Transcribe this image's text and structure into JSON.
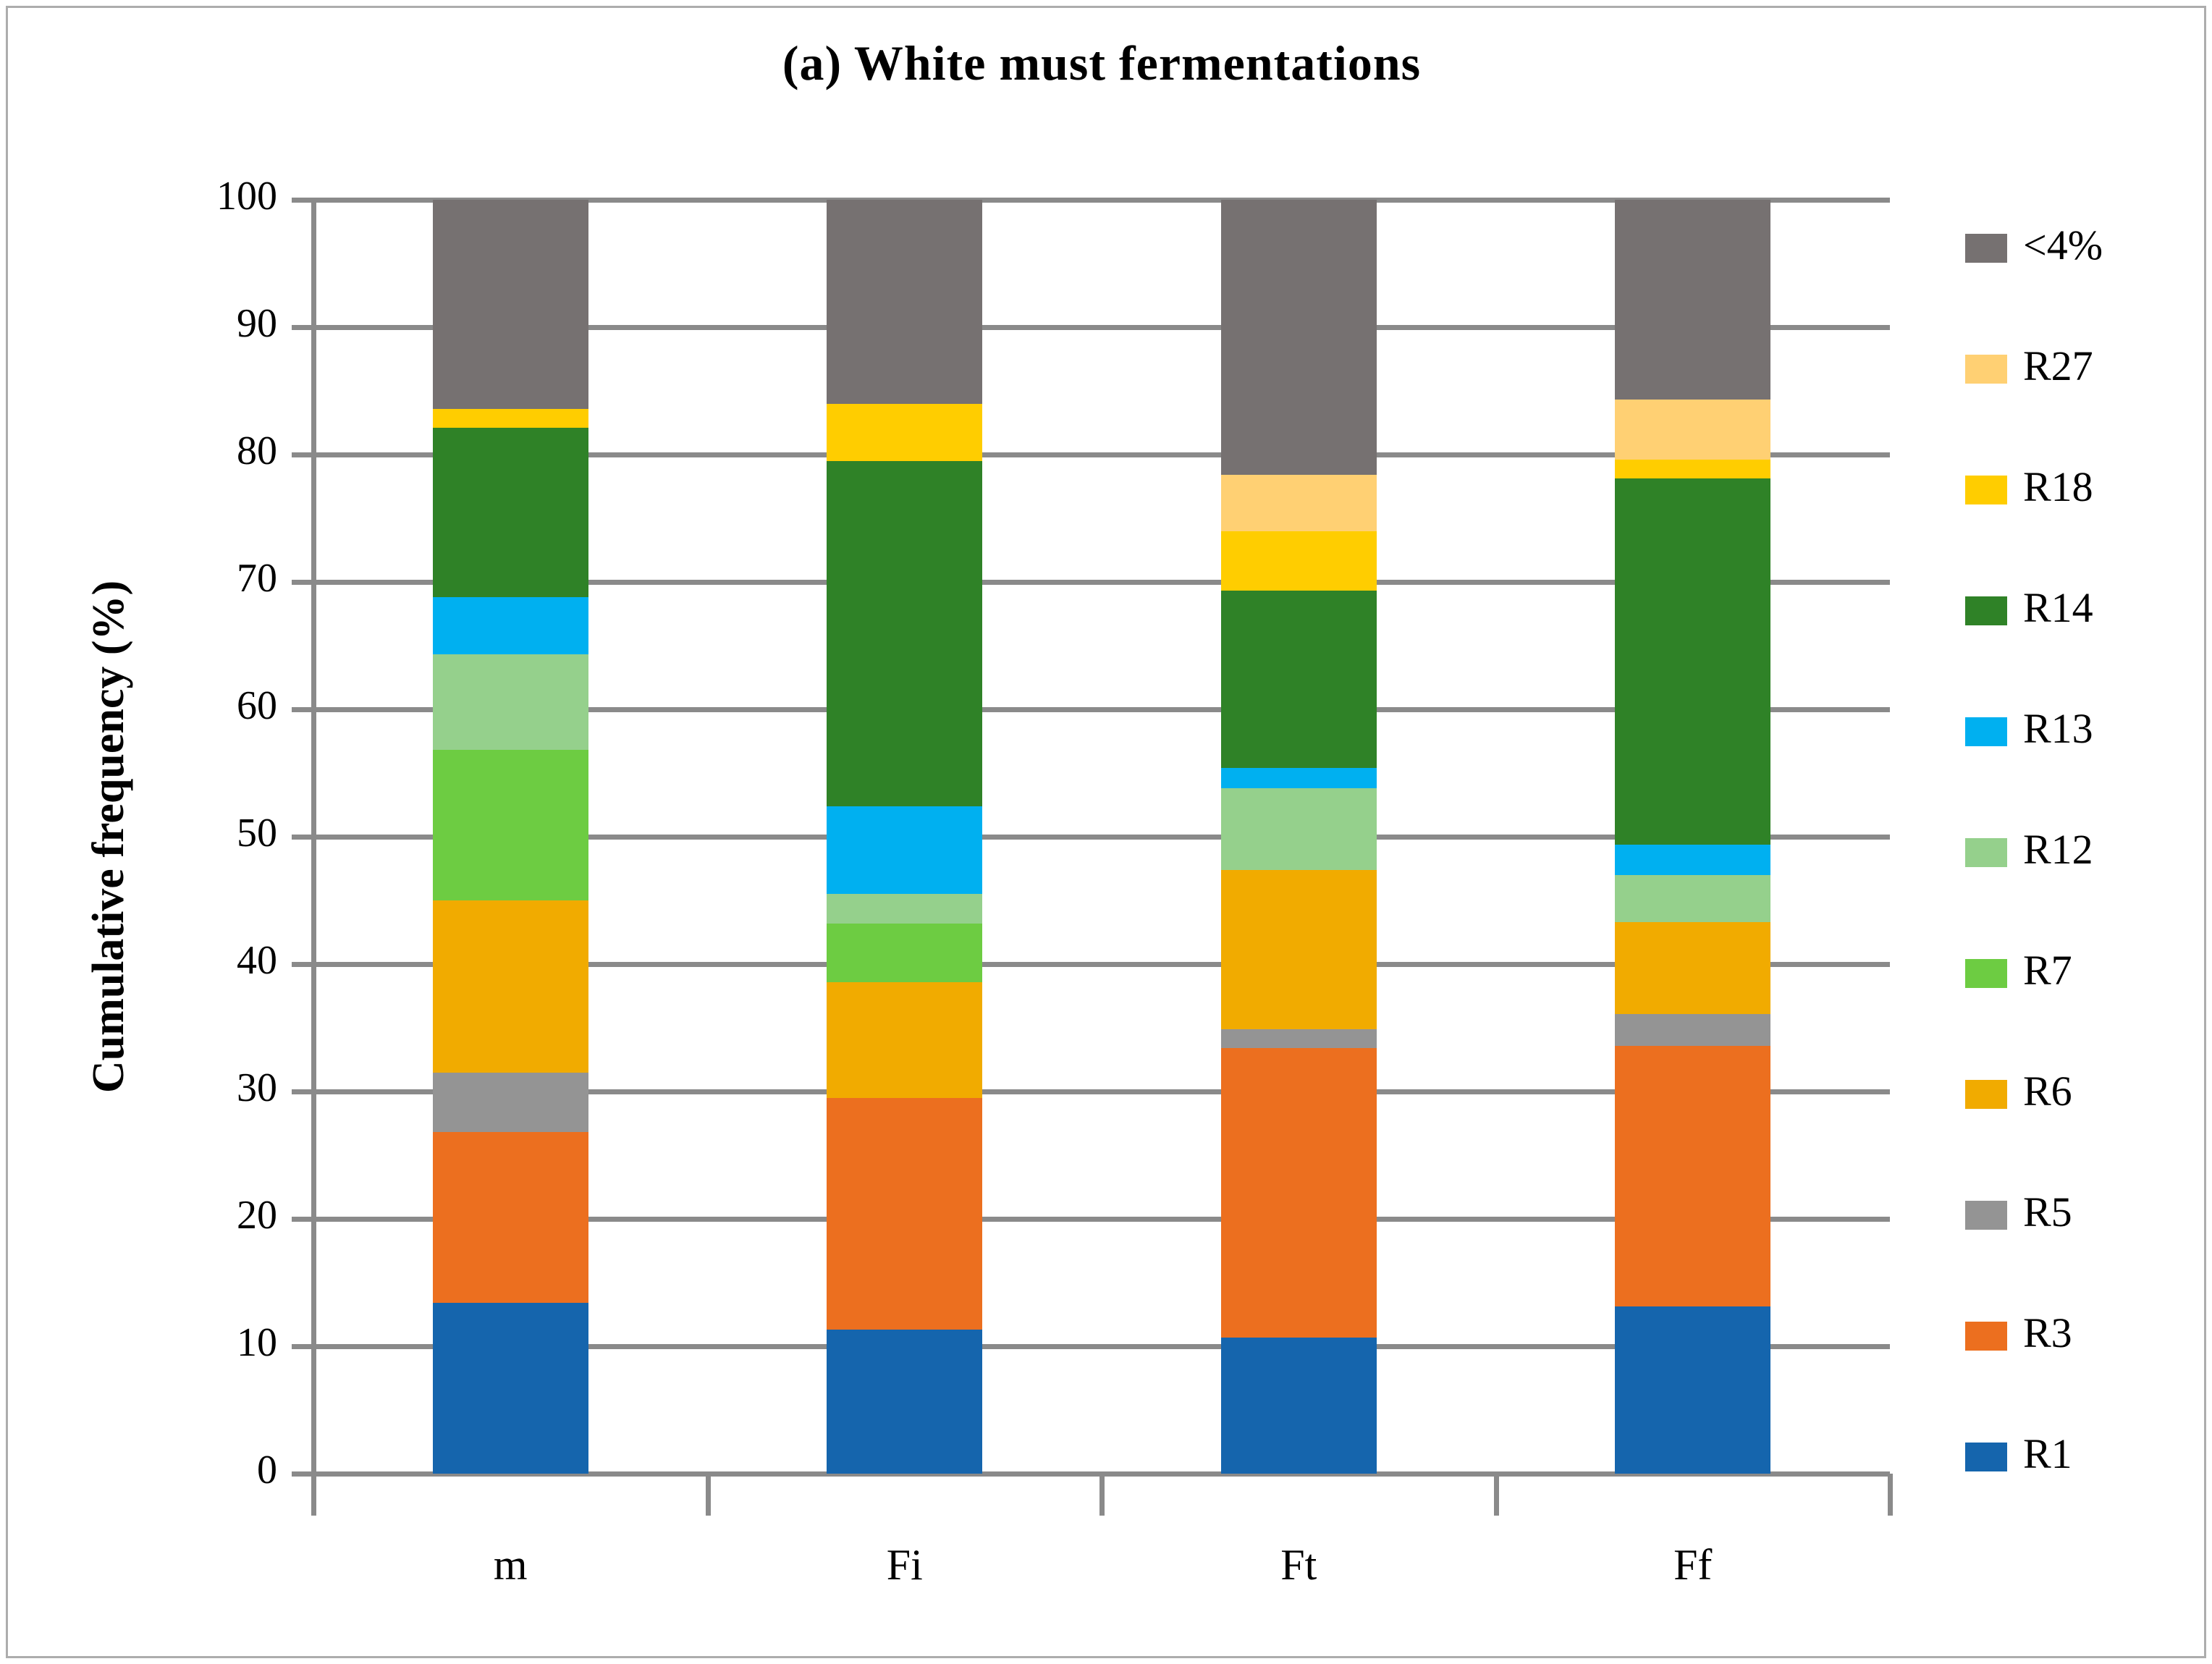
{
  "figure": {
    "title": "(a) White must fermentations"
  },
  "y_axis": {
    "label": "Cumulative frequency (%)",
    "ticks": [
      0,
      10,
      20,
      30,
      40,
      50,
      60,
      70,
      80,
      90,
      100
    ]
  },
  "colors": {
    "gridline": "#8A8A8A",
    "axis": "#8A8A8A",
    "border": "#ADADAD",
    "text": "#000000"
  },
  "chart_data": {
    "type": "bar",
    "subtype": "stacked-vertical",
    "title": "(a) White must fermentations",
    "xlabel": "",
    "ylabel": "Cumulative frequency (%)",
    "ylim": [
      0,
      100
    ],
    "grid": true,
    "legend_position": "right",
    "legend_order_top_to_bottom": [
      "<4%",
      "R27",
      "R18",
      "R14",
      "R13",
      "R12",
      "R7",
      "R6",
      "R5",
      "R3",
      "R1"
    ],
    "categories": [
      "m",
      "Fi",
      "Ft",
      "Ff"
    ],
    "series": [
      {
        "name": "R1",
        "color": "#1565AD",
        "values": [
          13.4,
          11.3,
          10.7,
          13.1
        ]
      },
      {
        "name": "R3",
        "color": "#EC6F1F",
        "values": [
          13.4,
          18.2,
          22.7,
          20.5
        ]
      },
      {
        "name": "R5",
        "color": "#949494",
        "values": [
          4.7,
          0,
          1.5,
          2.5
        ]
      },
      {
        "name": "R6",
        "color": "#F1AB00",
        "values": [
          13.5,
          9.1,
          12.5,
          7.2
        ]
      },
      {
        "name": "R7",
        "color": "#6DCC42",
        "values": [
          11.8,
          4.6,
          0,
          0
        ]
      },
      {
        "name": "R12",
        "color": "#95D08C",
        "values": [
          7.5,
          2.3,
          6.4,
          3.7
        ]
      },
      {
        "name": "R13",
        "color": "#00B0F0",
        "values": [
          4.5,
          6.9,
          1.6,
          2.4
        ]
      },
      {
        "name": "R14",
        "color": "#2F8227",
        "values": [
          13.3,
          27.1,
          13.9,
          28.7
        ]
      },
      {
        "name": "R18",
        "color": "#FFCD00",
        "values": [
          1.5,
          4.5,
          4.7,
          1.5
        ]
      },
      {
        "name": "R27",
        "color": "#FFD073",
        "values": [
          0,
          0,
          4.4,
          4.7
        ]
      },
      {
        "name": "<4%",
        "color": "#767171",
        "values": [
          16.4,
          16.0,
          21.6,
          15.7
        ]
      }
    ]
  }
}
